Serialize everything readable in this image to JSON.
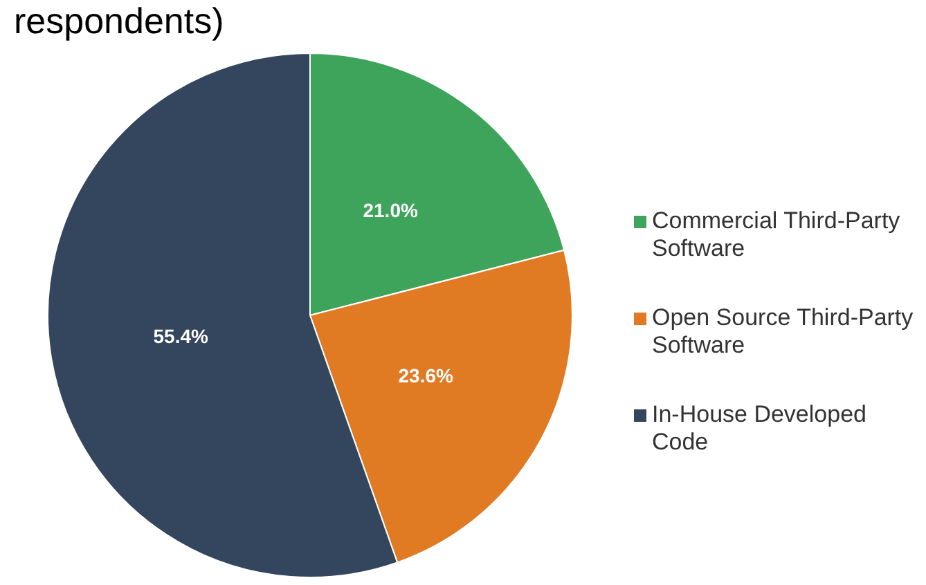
{
  "chart_data": {
    "type": "pie",
    "title": "respondents)",
    "categories": [
      "Commercial Third-Party Software",
      "Open Source Third-Party Software",
      "In-House Developed Code"
    ],
    "values": [
      21.0,
      23.6,
      55.4
    ],
    "colors": [
      "#3fa45b",
      "#e07b24",
      "#34465e"
    ],
    "value_labels": [
      "21.0%",
      "23.6%",
      "55.4%"
    ],
    "legend": "right"
  }
}
